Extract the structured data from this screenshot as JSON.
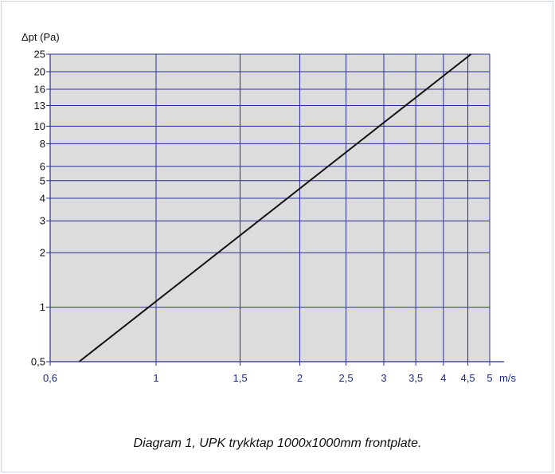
{
  "caption": "Diagram 1, UPK trykktap 1000x1000mm frontplate.",
  "chart_data": {
    "type": "line",
    "title": "",
    "xlabel": "m/s",
    "ylabel": "Δpt (Pa)",
    "xscale": "log",
    "yscale": "log",
    "xlim": [
      0.6,
      5
    ],
    "ylim": [
      0.5,
      25
    ],
    "xticks": [
      {
        "v": 0.6,
        "label": "0,6"
      },
      {
        "v": 1,
        "label": "1"
      },
      {
        "v": 1.5,
        "label": "1,5"
      },
      {
        "v": 2,
        "label": "2"
      },
      {
        "v": 2.5,
        "label": "2,5"
      },
      {
        "v": 3,
        "label": "3"
      },
      {
        "v": 3.5,
        "label": "3,5"
      },
      {
        "v": 4,
        "label": "4"
      },
      {
        "v": 4.5,
        "label": "4,5"
      },
      {
        "v": 5,
        "label": "5"
      }
    ],
    "yticks": [
      {
        "v": 0.5,
        "label": "0,5"
      },
      {
        "v": 1,
        "label": "1"
      },
      {
        "v": 2,
        "label": "2"
      },
      {
        "v": 3,
        "label": "3"
      },
      {
        "v": 4,
        "label": "4"
      },
      {
        "v": 5,
        "label": "5"
      },
      {
        "v": 6,
        "label": "6"
      },
      {
        "v": 8,
        "label": "8"
      },
      {
        "v": 10,
        "label": "10"
      },
      {
        "v": 13,
        "label": "13"
      },
      {
        "v": 16,
        "label": "16"
      },
      {
        "v": 20,
        "label": "20"
      },
      {
        "v": 25,
        "label": "25"
      }
    ],
    "series": [
      {
        "x": [
          0.69,
          4.57
        ],
        "y": [
          0.5,
          25
        ]
      }
    ],
    "grid": true,
    "legend": "none",
    "colors": {
      "plot_bg": "#dcdcdc",
      "grid": "#2b2f8f",
      "line": "#111111",
      "tick_label": "#1a2a8a"
    }
  }
}
